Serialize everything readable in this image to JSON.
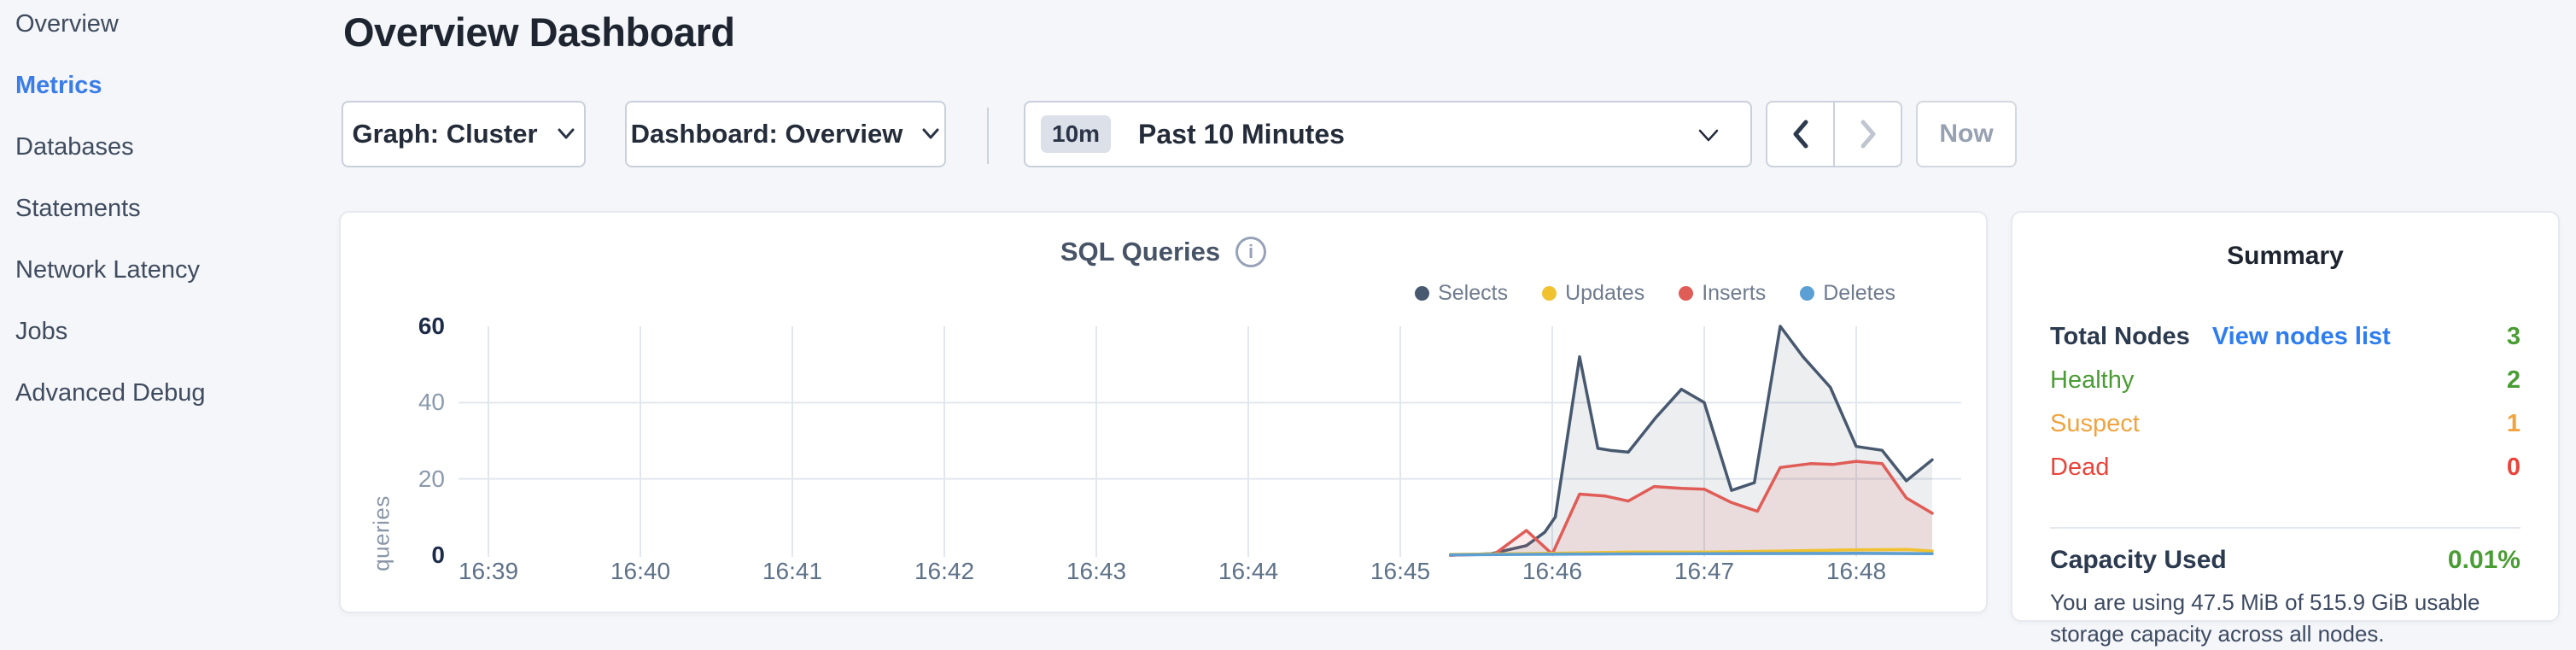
{
  "sidebar": {
    "items": [
      {
        "label": "Overview",
        "active": false
      },
      {
        "label": "Metrics",
        "active": true
      },
      {
        "label": "Databases",
        "active": false
      },
      {
        "label": "Statements",
        "active": false
      },
      {
        "label": "Network Latency",
        "active": false
      },
      {
        "label": "Jobs",
        "active": false
      },
      {
        "label": "Advanced Debug",
        "active": false
      }
    ]
  },
  "header": {
    "title": "Overview Dashboard"
  },
  "toolbar": {
    "graph_dropdown": {
      "text": "Graph: Cluster"
    },
    "dashboard_dropdown": {
      "text": "Dashboard: Overview"
    },
    "time_selector": {
      "badge": "10m",
      "label": "Past 10 Minutes"
    },
    "now_label": "Now"
  },
  "chart_data": {
    "type": "area",
    "title": "SQL Queries",
    "ylabel": "queries",
    "xlabel": "",
    "x_ticks": [
      "16:39",
      "16:40",
      "16:41",
      "16:42",
      "16:43",
      "16:44",
      "16:45",
      "16:46",
      "16:47",
      "16:48"
    ],
    "y_ticks": [
      0,
      20,
      40,
      60
    ],
    "ylim": [
      0,
      60
    ],
    "x_range_minutes": [
      -0.2,
      9.69
    ],
    "grid": {
      "vertical_at_each_tick": true,
      "horizontal_at": [
        20,
        40
      ]
    },
    "legend_position": "top-right",
    "gridline_color": "#e2e7ee",
    "draw_order": [
      "Selects",
      "Inserts",
      "Updates",
      "Deletes"
    ],
    "series": [
      {
        "name": "Selects",
        "color": "#47586f",
        "fill": "rgba(71,88,111,0.10)",
        "points": [
          [
            6.33,
            0
          ],
          [
            6.6,
            0.4
          ],
          [
            6.83,
            2.5
          ],
          [
            6.95,
            6
          ],
          [
            7.02,
            10
          ],
          [
            7.18,
            52
          ],
          [
            7.3,
            28
          ],
          [
            7.38,
            27.5
          ],
          [
            7.5,
            27
          ],
          [
            7.68,
            36
          ],
          [
            7.85,
            43.5
          ],
          [
            8.0,
            40
          ],
          [
            8.18,
            17
          ],
          [
            8.33,
            19
          ],
          [
            8.5,
            60
          ],
          [
            8.65,
            52
          ],
          [
            8.83,
            44
          ],
          [
            9.0,
            28.5
          ],
          [
            9.17,
            27.5
          ],
          [
            9.33,
            19.5
          ],
          [
            9.5,
            25
          ]
        ]
      },
      {
        "name": "Updates",
        "color": "#f0c22f",
        "fill": "rgba(240,194,47,0.15)",
        "points": [
          [
            6.33,
            0.2
          ],
          [
            7.0,
            0.5
          ],
          [
            7.5,
            0.8
          ],
          [
            8.0,
            0.8
          ],
          [
            8.5,
            1.1
          ],
          [
            9.0,
            1.4
          ],
          [
            9.33,
            1.5
          ],
          [
            9.5,
            1.1
          ]
        ]
      },
      {
        "name": "Inserts",
        "color": "#e05c57",
        "fill": "rgba(224,92,87,0.12)",
        "points": [
          [
            6.33,
            0
          ],
          [
            6.62,
            0.3
          ],
          [
            6.83,
            6.5
          ],
          [
            7.0,
            0.3
          ],
          [
            7.18,
            16
          ],
          [
            7.35,
            15.5
          ],
          [
            7.5,
            14.2
          ],
          [
            7.67,
            18
          ],
          [
            7.85,
            17.5
          ],
          [
            8.0,
            17.3
          ],
          [
            8.18,
            13.8
          ],
          [
            8.35,
            11.5
          ],
          [
            8.5,
            23
          ],
          [
            8.7,
            24
          ],
          [
            8.85,
            23.8
          ],
          [
            9.0,
            24.6
          ],
          [
            9.17,
            24
          ],
          [
            9.33,
            15
          ],
          [
            9.5,
            11
          ]
        ]
      },
      {
        "name": "Deletes",
        "color": "#5b9fd4",
        "fill": "rgba(91,159,212,0.15)",
        "points": [
          [
            6.33,
            0.1
          ],
          [
            7.2,
            0.3
          ],
          [
            8.0,
            0.4
          ],
          [
            9.0,
            0.5
          ],
          [
            9.5,
            0.4
          ]
        ]
      }
    ]
  },
  "summary": {
    "title": "Summary",
    "rows": [
      {
        "label": "Total Nodes",
        "link": "View nodes list",
        "value": "3",
        "status": "green"
      },
      {
        "label": "Healthy",
        "value": "2",
        "status": "green"
      },
      {
        "label": "Suspect",
        "value": "1",
        "status": "orange"
      },
      {
        "label": "Dead",
        "value": "0",
        "status": "red"
      }
    ],
    "capacity": {
      "label": "Capacity Used",
      "value": "0.01%",
      "description": "You are using 47.5 MiB of 515.9 GiB usable storage capacity across all nodes."
    }
  },
  "colors": {
    "accent_blue": "#3b7de8",
    "status_green": "#4a9c34",
    "status_orange": "#f0a33f",
    "status_red": "#e8453c",
    "selects": "#47586f",
    "updates": "#f0c22f",
    "inserts": "#e05c57",
    "deletes": "#5b9fd4"
  }
}
